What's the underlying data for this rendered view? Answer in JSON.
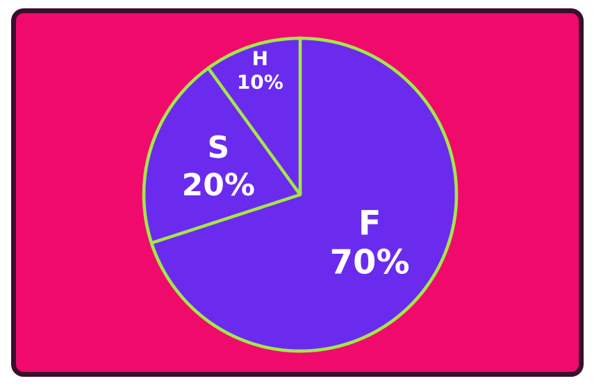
{
  "chart_data": {
    "type": "pie",
    "slices": [
      {
        "label": "F",
        "value": 70,
        "value_label": "70%"
      },
      {
        "label": "S",
        "value": 20,
        "value_label": "20%"
      },
      {
        "label": "H",
        "value": 10,
        "value_label": "10%"
      }
    ],
    "colors": {
      "background": "#f00a6c",
      "border": "#3a0f2e",
      "slice_fill": "#6a2bef",
      "slice_outline": "#a5e64a",
      "label_text": "#ffffff"
    }
  }
}
